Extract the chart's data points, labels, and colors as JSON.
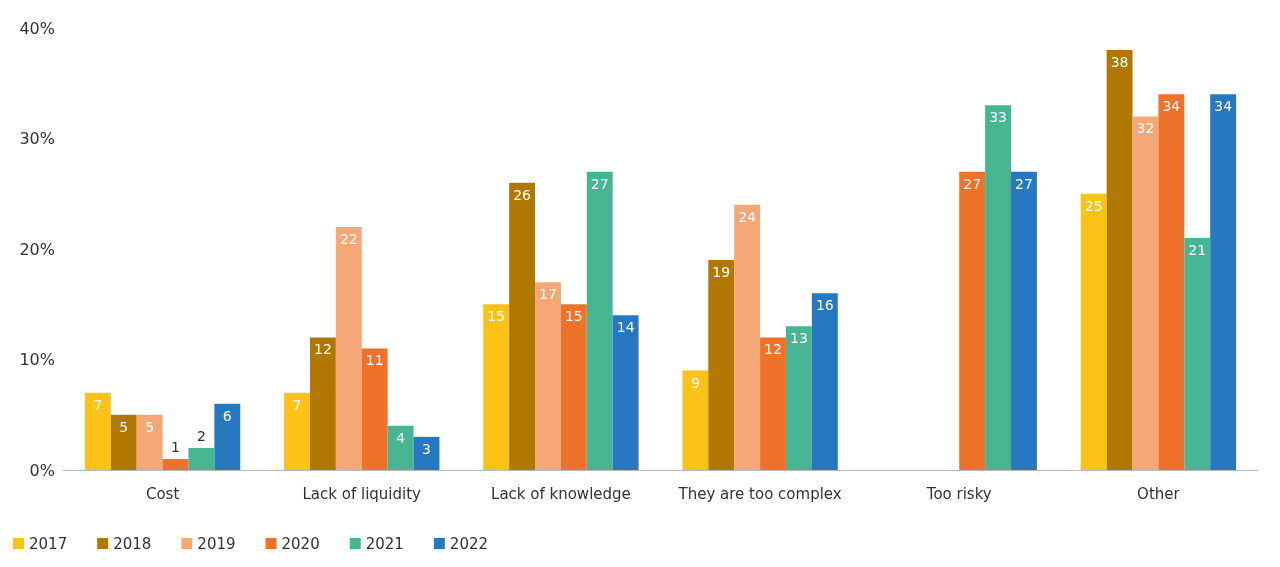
{
  "chart_data": {
    "type": "bar",
    "categories": [
      "Cost",
      "Lack of liquidity",
      "Lack of knowledge",
      "They are too complex",
      "Too risky",
      "Other"
    ],
    "series": [
      {
        "name": "2017",
        "color": "#fcc216",
        "values": [
          7,
          7,
          15,
          9,
          0,
          25
        ],
        "value_labels": [
          "7",
          "7",
          "15",
          "9",
          null,
          "25"
        ]
      },
      {
        "name": "2018",
        "color": "#b07800",
        "values": [
          5,
          12,
          26,
          19,
          0,
          38
        ],
        "value_labels": [
          "5",
          "12",
          "26",
          "19",
          null,
          "38"
        ]
      },
      {
        "name": "2019",
        "color": "#f5a875",
        "values": [
          5,
          22,
          17,
          24,
          0,
          32
        ],
        "value_labels": [
          "5",
          "22",
          "17",
          "24",
          null,
          "32"
        ]
      },
      {
        "name": "2020",
        "color": "#ef722b",
        "values": [
          1,
          11,
          15,
          12,
          27,
          34
        ],
        "value_labels": [
          "1",
          "11",
          "15",
          "12",
          "27",
          "34"
        ]
      },
      {
        "name": "2021",
        "color": "#45b592",
        "values": [
          2,
          4,
          27,
          13,
          33,
          21
        ],
        "value_labels": [
          "2",
          "4",
          "27",
          "13",
          "33",
          "21"
        ]
      },
      {
        "name": "2022",
        "color": "#2678c1",
        "values": [
          6,
          3,
          14,
          16,
          27,
          34
        ],
        "value_labels": [
          "6",
          "3",
          "14",
          "16",
          "27",
          "34"
        ]
      }
    ],
    "ylim": [
      0,
      40
    ],
    "yticks": [
      {
        "value": 0,
        "label": "0%"
      },
      {
        "value": 10,
        "label": "10%"
      },
      {
        "value": 20,
        "label": "20%"
      },
      {
        "value": 30,
        "label": "30%"
      },
      {
        "value": 40,
        "label": "40%"
      }
    ],
    "grid": false,
    "legend": "bottom left"
  }
}
